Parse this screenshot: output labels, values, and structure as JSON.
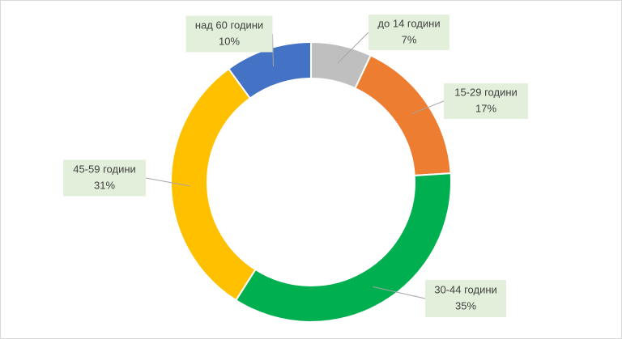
{
  "chart_data": {
    "type": "donut",
    "categories": [
      "до 14 години",
      "15-29 години",
      "30-44 години",
      "45-59 години",
      "над 60 години"
    ],
    "values": [
      7,
      17,
      35,
      31,
      10
    ],
    "value_labels": [
      "7%",
      "17%",
      "35%",
      "31%",
      "10%"
    ],
    "colors": [
      "#bfbfbf",
      "#ed7d31",
      "#00b050",
      "#ffc000",
      "#4472c4"
    ]
  }
}
